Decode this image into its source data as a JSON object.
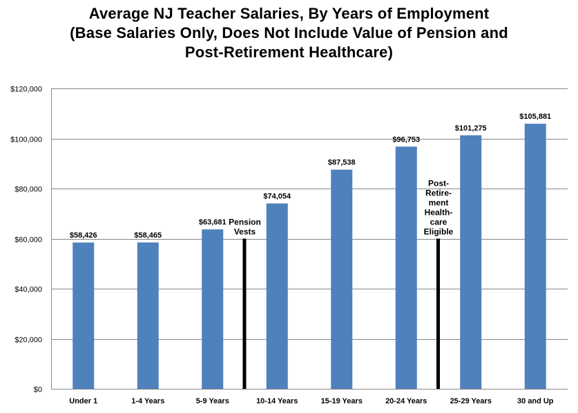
{
  "chart_data": {
    "type": "bar",
    "title_lines": [
      "Average NJ Teacher Salaries, By Years of Employment",
      "(Base Salaries Only, Does Not Include Value of Pension and",
      "Post-Retirement Healthcare)"
    ],
    "title": "Average NJ Teacher Salaries, By Years of Employment (Base Salaries Only, Does Not Include Value of Pension and Post-Retirement Healthcare)",
    "xlabel": "",
    "ylabel": "",
    "categories": [
      "Under 1",
      "1-4 Years",
      "5-9 Years",
      "10-14 Years",
      "15-19 Years",
      "20-24 Years",
      "25-29 Years",
      "30 and Up"
    ],
    "values": [
      58426,
      58465,
      63681,
      74054,
      87538,
      96753,
      101275,
      105881
    ],
    "data_labels": [
      "$58,426",
      "$58,465",
      "$63,681",
      "$74,054",
      "$87,538",
      "$96,753",
      "$101,275",
      "$105,881"
    ],
    "ylim": [
      0,
      120000
    ],
    "yticks": [
      0,
      20000,
      40000,
      60000,
      80000,
      100000,
      120000
    ],
    "ytick_labels": [
      "$0",
      "$20,000",
      "$40,000",
      "$60,000",
      "$80,000",
      "$100,000",
      "$120,000"
    ],
    "grid": true,
    "legend": null,
    "bar_color": "#4F81BD",
    "annotations": [
      {
        "text_lines": [
          "Pension",
          "Vests"
        ],
        "position": "between 5-9 Years and 10-14 Years",
        "marker": "vertical black line from $0 to $60,000"
      },
      {
        "text_lines": [
          "Post-",
          "Retire-",
          "ment",
          "Health-",
          "care",
          "Eligible"
        ],
        "position": "between 20-24 Years and 25-29 Years",
        "marker": "vertical black line from $0 to $60,000"
      }
    ]
  }
}
